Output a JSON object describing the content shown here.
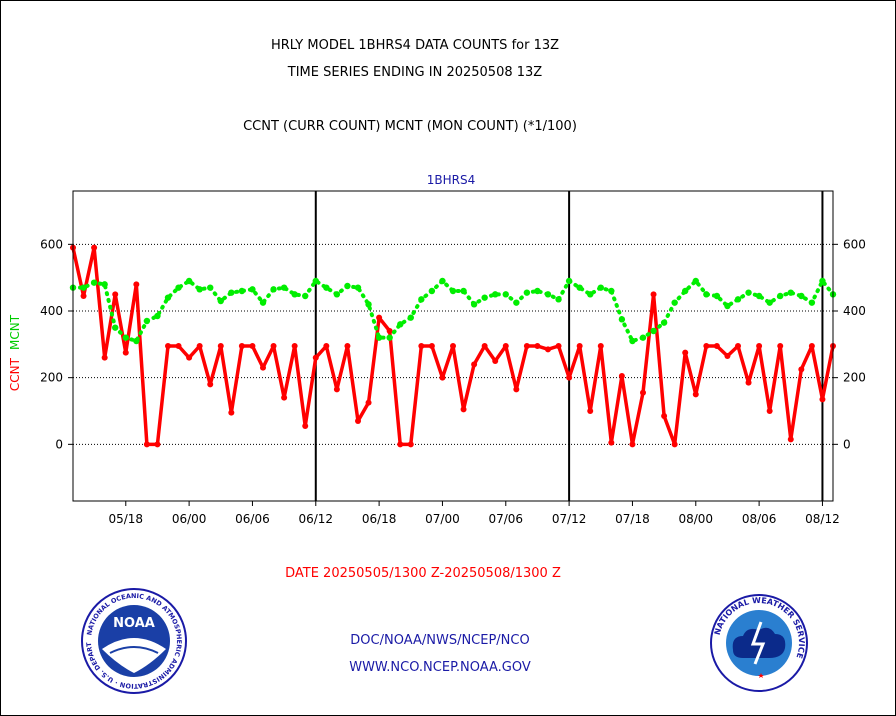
{
  "page": {
    "title_line1": "HRLY MODEL 1BHRS4 DATA COUNTS for 13Z",
    "title_line2": "TIME SERIES ENDING IN 20250508 13Z",
    "subtitle": "CCNT (CURR COUNT) MCNT (MON COUNT) (*1/100)",
    "date_label": "DATE 20250505/1300 Z-20250508/1300 Z",
    "link_doc": "DOC/NOAA/NWS/NCEP/NCO",
    "link_www": "WWW.NCO.NCEP.NOAA.GOV",
    "noaa_logo_text": "NOAA",
    "noaa_seal_text": "NATIONAL OCEANIC AND ATMOSPHERIC ADMINISTRATION · U.S. DEPARTMENT OF COMMERCE",
    "nws_seal_text": "NATIONAL WEATHER SERVICE"
  },
  "chart_data": {
    "type": "line",
    "title": "1BHRS4",
    "ylabel_left_1": "CCNT",
    "ylabel_left_2": "MCNT",
    "ylim": [
      -170,
      760
    ],
    "yticks": [
      0,
      200,
      400,
      600
    ],
    "xlim": [
      0,
      72
    ],
    "x_tick_labels": [
      "05/18",
      "06/00",
      "06/06",
      "06/12",
      "06/18",
      "07/00",
      "07/06",
      "07/12",
      "07/18",
      "08/00",
      "08/06",
      "08/12"
    ],
    "x_tick_hours": [
      5,
      11,
      17,
      23,
      29,
      35,
      41,
      47,
      53,
      59,
      65,
      71
    ],
    "vertical_lines_hours": [
      23,
      47,
      71
    ],
    "grid": "horizontal dotted at y ticks",
    "x": [
      0,
      1,
      2,
      3,
      4,
      5,
      6,
      7,
      8,
      9,
      10,
      11,
      12,
      13,
      14,
      15,
      16,
      17,
      18,
      19,
      20,
      21,
      22,
      23,
      24,
      25,
      26,
      27,
      28,
      29,
      30,
      31,
      32,
      33,
      34,
      35,
      36,
      37,
      38,
      39,
      40,
      41,
      42,
      43,
      44,
      45,
      46,
      47,
      48,
      49,
      50,
      51,
      52,
      53,
      54,
      55,
      56,
      57,
      58,
      59,
      60,
      61,
      62,
      63,
      64,
      65,
      66,
      67,
      68,
      69,
      70,
      71,
      72
    ],
    "series": [
      {
        "name": "CCNT",
        "color": "#ff0000",
        "style": "solid",
        "values": [
          590,
          445,
          590,
          260,
          450,
          275,
          480,
          0,
          0,
          295,
          295,
          260,
          295,
          180,
          295,
          95,
          295,
          295,
          230,
          295,
          140,
          295,
          55,
          260,
          295,
          165,
          295,
          70,
          125,
          380,
          340,
          0,
          0,
          295,
          295,
          200,
          295,
          105,
          240,
          295,
          250,
          295,
          165,
          295,
          295,
          285,
          295,
          200,
          295,
          100,
          295,
          5,
          205,
          0,
          155,
          450,
          85,
          0,
          275,
          150,
          295,
          295,
          265,
          295,
          185,
          295,
          100,
          295,
          15,
          225,
          295,
          135,
          295
        ]
      },
      {
        "name": "MCNT",
        "color": "#00ee00",
        "style": "dotted",
        "values": [
          470,
          470,
          485,
          480,
          350,
          320,
          310,
          370,
          385,
          440,
          470,
          490,
          465,
          470,
          430,
          455,
          460,
          465,
          425,
          465,
          470,
          450,
          445,
          490,
          470,
          450,
          475,
          470,
          420,
          320,
          320,
          360,
          380,
          435,
          460,
          490,
          460,
          460,
          420,
          440,
          450,
          450,
          425,
          455,
          460,
          450,
          435,
          490,
          470,
          450,
          470,
          460,
          375,
          310,
          320,
          340,
          365,
          425,
          460,
          490,
          450,
          445,
          415,
          435,
          455,
          445,
          425,
          445,
          455,
          445,
          425,
          490,
          450
        ]
      }
    ]
  }
}
